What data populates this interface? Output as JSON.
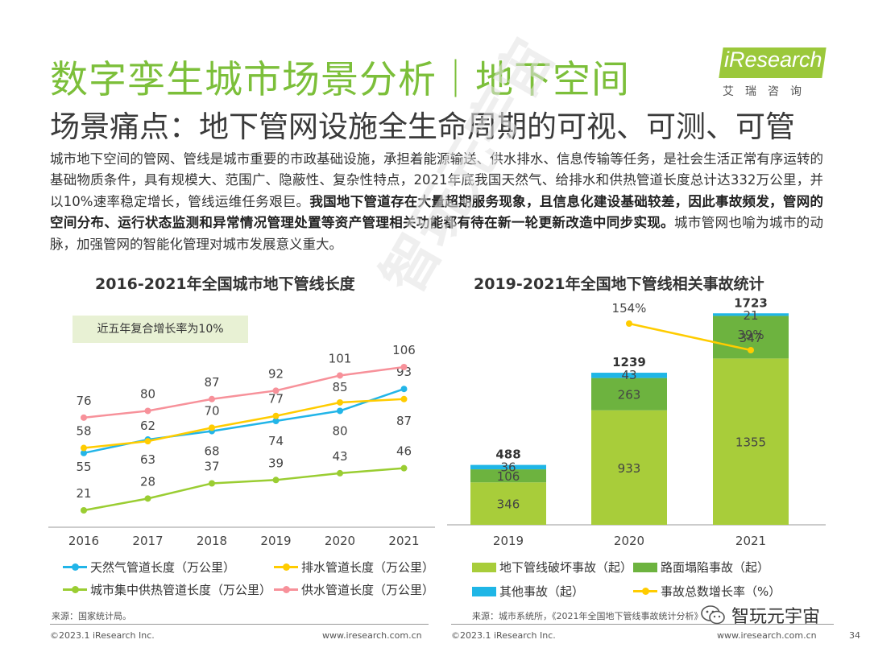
{
  "header": {
    "title": "数字孪生城市场景分析｜地下空间",
    "subtitle": "场景痛点：地下管网设施全生命周期的可视、可测、可管"
  },
  "logo": {
    "brand": "iResearch",
    "brand_cn": "艾瑞咨询"
  },
  "body": {
    "part1": "城市地下空间的管网、管线是城市重要的市政基础设施，承担着能源输送、供水排水、信息传输等任务，是社会生活正常有序运转的基础物质条件，具有规模大、范围广、隐蔽性、复杂性特点，2021年底我国天然气、给排水和供热管道长度总计达332万公里，并以10%速率稳定增长，管线运维任务艰巨。",
    "bold": "我国地下管道存在大量超期服务现象，且信息化建设基础较差，因此事故频发，管网的空间分布、运行状态监测和异常情况管理处置等资产管理相关功能都有待在新一轮更新改造中同步实现。",
    "part2": "城市管网也喻为城市的动脉，加强管网的智能化管理对城市发展意义重大。"
  },
  "watermark": {
    "text": "智玩元宇宙"
  },
  "chart_data": [
    {
      "type": "line",
      "title": "2016-2021年全国城市地下管线长度",
      "annotation": "近五年复合增长率为10%",
      "categories": [
        "2016",
        "2017",
        "2018",
        "2019",
        "2020",
        "2021"
      ],
      "series": [
        {
          "name": "天然气管道长度（万公里）",
          "color": "#22b5e8",
          "values": [
            55,
            63,
            68,
            74,
            80,
            93
          ]
        },
        {
          "name": "排水管道长度（万公里）",
          "color": "#ffcc00",
          "values": [
            58,
            62,
            70,
            77,
            85,
            87
          ]
        },
        {
          "name": "城市集中供热管道长度（万公里）",
          "color": "#9acd32",
          "values": [
            21,
            28,
            37,
            39,
            43,
            46
          ]
        },
        {
          "name": "供水管道长度（万公里）",
          "color": "#f7919a",
          "values": [
            76,
            80,
            87,
            92,
            101,
            106
          ]
        }
      ],
      "source": "来源：国家统计局。"
    },
    {
      "type": "bar",
      "stacked": true,
      "title": "2019-2021年全国地下管线相关事故统计",
      "categories": [
        "2019",
        "2020",
        "2021"
      ],
      "series": [
        {
          "name": "地下管线破坏事故（起）",
          "color": "#a8cd3a",
          "values": [
            346,
            933,
            1355
          ]
        },
        {
          "name": "路面塌陷事故（起）",
          "color": "#6db33f",
          "values": [
            106,
            263,
            347
          ]
        },
        {
          "name": "其他事故（起）",
          "color": "#1fb6e6",
          "values": [
            36,
            43,
            21
          ]
        }
      ],
      "totals": [
        488,
        1239,
        1723
      ],
      "growth": {
        "name": "事故总数增长率（%）",
        "color": "#ffcc00",
        "categories": [
          "2020",
          "2021"
        ],
        "values": [
          154,
          39
        ],
        "labels": [
          "154%",
          "39%"
        ]
      },
      "source": "来源：城市系统所，《2021年全国地下管线事故统计分析》"
    }
  ],
  "footer": {
    "copyright_left": "©2023.1 iResearch Inc.",
    "url_left": "www.iresearch.com.cn",
    "copyright_right": "©2023.1 iResearch Inc.",
    "url_right": "www.iresearch.com.cn",
    "page": "34",
    "wechat_label": "智玩元宇宙"
  }
}
